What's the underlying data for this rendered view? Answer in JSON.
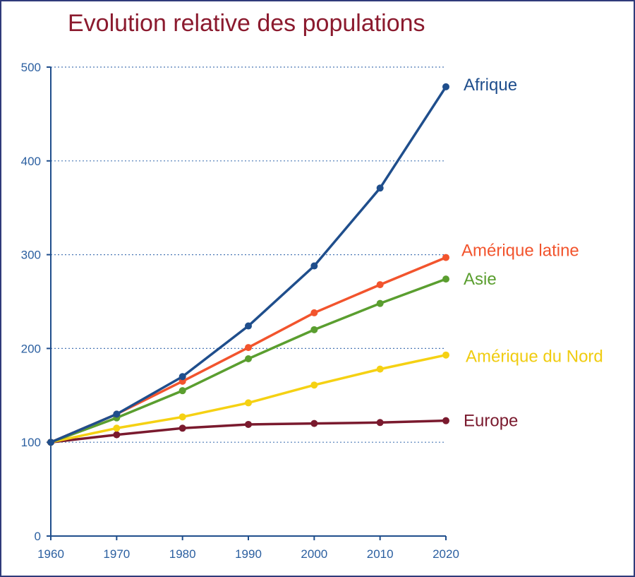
{
  "title": "Evolution relative des populations",
  "chart_data": {
    "type": "line",
    "title": "Evolution relative des populations",
    "xlabel": "",
    "ylabel": "",
    "x": [
      1960,
      1970,
      1980,
      1990,
      2000,
      2010,
      2020
    ],
    "xlim": [
      1960,
      2020
    ],
    "ylim": [
      0,
      500
    ],
    "yticks": [
      0,
      100,
      200,
      300,
      400,
      500
    ],
    "grid": "horizontal dotted at 100, 200, 300, 400, 500",
    "legend": "labels at line ends (right)",
    "series": [
      {
        "name": "Afrique",
        "color": "#1f4e8c",
        "values": [
          100,
          130,
          170,
          224,
          288,
          371,
          479
        ]
      },
      {
        "name": "Amérique latine",
        "color": "#f2542d",
        "values": [
          100,
          130,
          165,
          201,
          238,
          268,
          297
        ]
      },
      {
        "name": "Asie",
        "color": "#5a9e2f",
        "values": [
          100,
          126,
          155,
          189,
          220,
          248,
          274
        ]
      },
      {
        "name": "Amérique du Nord",
        "color": "#f5d113",
        "values": [
          100,
          115,
          127,
          142,
          161,
          178,
          193
        ]
      },
      {
        "name": "Europe",
        "color": "#7a1a2e",
        "values": [
          100,
          108,
          115,
          119,
          120,
          121,
          123
        ]
      }
    ]
  }
}
